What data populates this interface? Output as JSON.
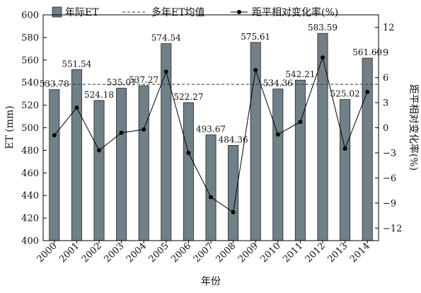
{
  "chart_data": {
    "type": "bar",
    "categories": [
      "2000",
      "2001",
      "2002",
      "2003",
      "2004",
      "2005",
      "2006",
      "2007",
      "2008",
      "2009",
      "2010",
      "2011",
      "2012",
      "2013",
      "2014"
    ],
    "xlabel": "年份",
    "ylabel": "ET (mm)",
    "y2label": "距平相对变化率(%)",
    "ylim": [
      400,
      600
    ],
    "yticks": [
      400,
      420,
      440,
      460,
      480,
      500,
      520,
      540,
      560,
      580,
      600
    ],
    "y2lim": [
      -13.5,
      13.5
    ],
    "y2ticks": [
      -12,
      -9,
      -6,
      -3,
      0,
      3,
      6,
      9,
      12
    ],
    "grid": false,
    "legend_position": "top",
    "series": [
      {
        "name": "年际ET",
        "kind": "bar",
        "color": "#6f8088",
        "values": [
          533.78,
          551.54,
          524.18,
          535.07,
          537.27,
          574.54,
          522.27,
          493.67,
          484.36,
          575.61,
          534.36,
          542.21,
          583.59,
          525.02,
          561.69
        ],
        "labels": [
          "533.78",
          "551.54",
          "524.18",
          "535.07",
          "537.27",
          "574.54",
          "522.27",
          "493.67",
          "484.36",
          "575.61",
          "534.36",
          "542.21",
          "583.59",
          "525.02",
          "561.69"
        ]
      },
      {
        "name": "多年ET均值",
        "kind": "reference-line",
        "style": "dashed",
        "color": "#333333",
        "value": 538.5
      },
      {
        "name": "距平相对变化率(%)",
        "kind": "line",
        "axis": "right",
        "color": "#000000",
        "values": [
          -0.9,
          2.4,
          -2.7,
          -0.6,
          -0.2,
          6.7,
          -3.0,
          -8.3,
          -10.1,
          6.9,
          -0.8,
          0.7,
          8.4,
          -2.5,
          4.3
        ]
      }
    ]
  }
}
